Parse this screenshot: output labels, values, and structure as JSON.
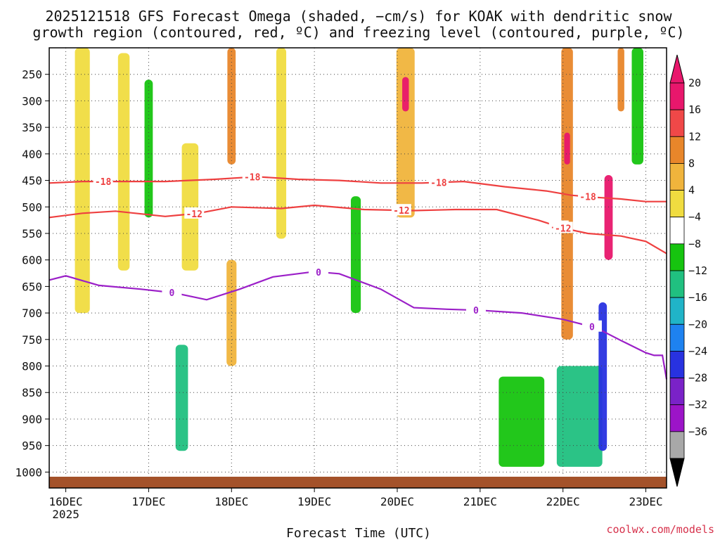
{
  "chart_data": {
    "type": "heatmap",
    "title_lines": [
      "2025121518 GFS Forecast Omega (shaded, −cm/s) for KOAK with dendritic snow",
      "growth region (contoured, red, ºC) and freezing level (contoured, purple, ºC)"
    ],
    "xlabel": "Forecast Time (UTC)",
    "credit": "coolwx.com/models",
    "x_ticks": [
      {
        "label": "16DEC",
        "sub": "2025",
        "day": 0.0
      },
      {
        "label": "17DEC",
        "sub": "",
        "day": 1.0
      },
      {
        "label": "18DEC",
        "sub": "",
        "day": 2.0
      },
      {
        "label": "19DEC",
        "sub": "",
        "day": 3.0
      },
      {
        "label": "20DEC",
        "sub": "",
        "day": 4.0
      },
      {
        "label": "21DEC",
        "sub": "",
        "day": 5.0
      },
      {
        "label": "22DEC",
        "sub": "",
        "day": 6.0
      },
      {
        "label": "23DEC",
        "sub": "",
        "day": 7.0
      }
    ],
    "xlim_days": [
      -0.2,
      7.25
    ],
    "y_ticks": [
      250,
      300,
      350,
      400,
      450,
      500,
      550,
      600,
      650,
      700,
      750,
      800,
      850,
      900,
      950,
      1000
    ],
    "ylim_hpa": [
      200,
      1030
    ],
    "colorbar": {
      "labels": [
        "20",
        "16",
        "12",
        "8",
        "4",
        "−4",
        "−8",
        "−12",
        "−16",
        "−20",
        "−24",
        "−28",
        "−32",
        "−36"
      ],
      "colors": [
        "#e8176c",
        "#f04848",
        "#e8862a",
        "#f0b43c",
        "#f0dc40",
        "#ffffff",
        "#16c40f",
        "#20c080",
        "#20b4c8",
        "#1e82f0",
        "#2832e0",
        "#7a22c8",
        "#9c14c8",
        "#a8a8a8"
      ],
      "top_triangle": "#e8176c",
      "bottom_triangle": "#000000"
    },
    "contours": [
      {
        "name": "minus-18",
        "color": "#ee4040",
        "labels": [
          "-18",
          "-18",
          "-18",
          "-18"
        ],
        "label_days": [
          0.45,
          2.25,
          4.5,
          6.3
        ],
        "points": [
          [
            -0.2,
            455
          ],
          [
            0.2,
            452
          ],
          [
            0.6,
            452
          ],
          [
            1.2,
            452
          ],
          [
            1.8,
            448
          ],
          [
            2.3,
            443
          ],
          [
            2.8,
            448
          ],
          [
            3.3,
            450
          ],
          [
            3.8,
            455
          ],
          [
            4.3,
            455
          ],
          [
            4.8,
            452
          ],
          [
            5.3,
            462
          ],
          [
            5.8,
            470
          ],
          [
            6.1,
            478
          ],
          [
            6.4,
            482
          ],
          [
            6.7,
            485
          ],
          [
            7.0,
            490
          ],
          [
            7.25,
            490
          ]
        ]
      },
      {
        "name": "minus-12",
        "color": "#ee4040",
        "labels": [
          "-12",
          "-12",
          "-12",
          "-12"
        ],
        "label_days": [
          1.55,
          4.05,
          5.95,
          6.0
        ],
        "points": [
          [
            -0.2,
            520
          ],
          [
            0.2,
            512
          ],
          [
            0.6,
            508
          ],
          [
            1.2,
            518
          ],
          [
            1.6,
            512
          ],
          [
            2.0,
            500
          ],
          [
            2.6,
            503
          ],
          [
            3.0,
            497
          ],
          [
            3.6,
            505
          ],
          [
            4.2,
            507
          ],
          [
            4.7,
            505
          ],
          [
            5.2,
            505
          ],
          [
            5.7,
            525
          ],
          [
            6.0,
            540
          ],
          [
            6.3,
            550
          ],
          [
            6.7,
            555
          ],
          [
            7.0,
            565
          ],
          [
            7.25,
            588
          ]
        ]
      },
      {
        "name": "zero",
        "color": "#9b1fc8",
        "labels": [
          "0",
          "0",
          "0",
          "0"
        ],
        "label_days": [
          1.28,
          3.05,
          4.95,
          6.35
        ],
        "points": [
          [
            -0.2,
            638
          ],
          [
            0.0,
            630
          ],
          [
            0.4,
            648
          ],
          [
            0.9,
            655
          ],
          [
            1.3,
            662
          ],
          [
            1.7,
            675
          ],
          [
            2.1,
            655
          ],
          [
            2.5,
            632
          ],
          [
            3.0,
            622
          ],
          [
            3.3,
            626
          ],
          [
            3.8,
            655
          ],
          [
            4.2,
            690
          ],
          [
            4.6,
            693
          ],
          [
            5.0,
            695
          ],
          [
            5.5,
            700
          ],
          [
            6.0,
            712
          ],
          [
            6.4,
            728
          ],
          [
            6.7,
            752
          ],
          [
            7.0,
            775
          ],
          [
            7.1,
            780
          ],
          [
            7.2,
            780
          ],
          [
            7.25,
            825
          ]
        ]
      }
    ],
    "omega_features": [
      {
        "day": 0.2,
        "p_top": 200,
        "p_bot": 700,
        "width": 0.18,
        "value": 6
      },
      {
        "day": 0.7,
        "p_top": 210,
        "p_bot": 620,
        "width": 0.14,
        "value": 5
      },
      {
        "day": 1.0,
        "p_top": 260,
        "p_bot": 520,
        "width": 0.1,
        "value": -6
      },
      {
        "day": 1.5,
        "p_top": 380,
        "p_bot": 620,
        "width": 0.2,
        "value": 6
      },
      {
        "day": 2.0,
        "p_top": 200,
        "p_bot": 420,
        "width": 0.1,
        "value": 14
      },
      {
        "day": 2.0,
        "p_top": 600,
        "p_bot": 800,
        "width": 0.12,
        "value": 8
      },
      {
        "day": 2.6,
        "p_top": 200,
        "p_bot": 560,
        "width": 0.12,
        "value": 6
      },
      {
        "day": 4.1,
        "p_top": 200,
        "p_bot": 520,
        "width": 0.22,
        "value": 9
      },
      {
        "day": 4.1,
        "p_top": 255,
        "p_bot": 320,
        "width": 0.08,
        "value": 20
      },
      {
        "day": 6.05,
        "p_top": 200,
        "p_bot": 750,
        "width": 0.14,
        "value": 13
      },
      {
        "day": 6.05,
        "p_top": 360,
        "p_bot": 420,
        "width": 0.07,
        "value": 20
      },
      {
        "day": 6.55,
        "p_top": 440,
        "p_bot": 600,
        "width": 0.1,
        "value": 20
      },
      {
        "day": 6.7,
        "p_top": 200,
        "p_bot": 320,
        "width": 0.08,
        "value": 13
      },
      {
        "day": 1.4,
        "p_top": 760,
        "p_bot": 960,
        "width": 0.15,
        "value": -8
      },
      {
        "day": 6.2,
        "p_top": 800,
        "p_bot": 990,
        "width": 0.55,
        "value": -9
      },
      {
        "day": 6.48,
        "p_top": 680,
        "p_bot": 960,
        "width": 0.1,
        "value": -22
      },
      {
        "day": 5.5,
        "p_top": 820,
        "p_bot": 990,
        "width": 0.55,
        "value": -6
      },
      {
        "day": 3.5,
        "p_top": 480,
        "p_bot": 700,
        "width": 0.12,
        "value": -6
      },
      {
        "day": 6.9,
        "p_top": 200,
        "p_bot": 420,
        "width": 0.14,
        "value": -6
      }
    ]
  }
}
